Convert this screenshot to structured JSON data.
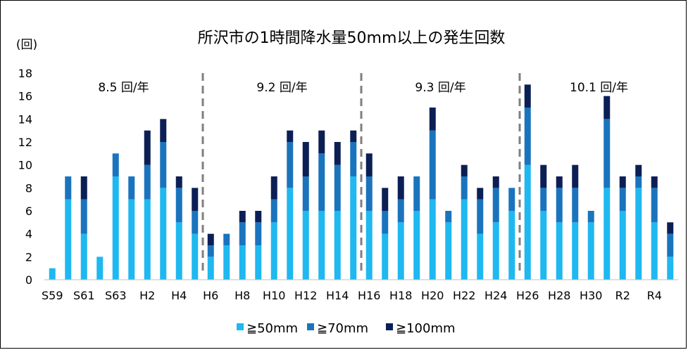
{
  "chart_data": {
    "type": "bar",
    "stacked": true,
    "title": "所沢市の1時間降水量50mm以上の発生回数",
    "ylabel": "(回)",
    "xlabel": "",
    "ylim": [
      0,
      18
    ],
    "yticks": [
      0,
      2,
      4,
      6,
      8,
      10,
      12,
      14,
      16,
      18
    ],
    "grid": false,
    "legend_position": "bottom",
    "categories": [
      "S59",
      "S60",
      "S61",
      "S62",
      "S63",
      "H1",
      "H2",
      "H3",
      "H4",
      "H5",
      "H6",
      "H7",
      "H8",
      "H9",
      "H10",
      "H11",
      "H12",
      "H13",
      "H14",
      "H15",
      "H16",
      "H17",
      "H18",
      "H19",
      "H20",
      "H21",
      "H22",
      "H23",
      "H24",
      "H25",
      "H26",
      "H27",
      "H28",
      "H29",
      "H30",
      "R1",
      "R2",
      "R3",
      "R4",
      "R5"
    ],
    "tick_labels": [
      "S59",
      "",
      "S61",
      "",
      "S63",
      "",
      "H2",
      "",
      "H4",
      "",
      "H6",
      "",
      "H8",
      "",
      "H10",
      "",
      "H12",
      "",
      "H14",
      "",
      "H16",
      "",
      "H18",
      "",
      "H20",
      "",
      "H22",
      "",
      "H24",
      "",
      "H26",
      "",
      "H28",
      "",
      "H30",
      "",
      "R2",
      "",
      "R4",
      ""
    ],
    "series": [
      {
        "name": "≧50mm",
        "color": "#1fb8f0",
        "values": [
          1,
          7,
          4,
          2,
          9,
          7,
          7,
          8,
          5,
          4,
          2,
          3,
          3,
          3,
          5,
          8,
          6,
          6,
          6,
          9,
          6,
          4,
          5,
          6,
          7,
          5,
          7,
          4,
          5,
          6,
          10,
          6,
          5,
          5,
          5,
          8,
          6,
          8,
          5,
          2
        ]
      },
      {
        "name": "≧70mm",
        "color": "#1a74bd",
        "values": [
          0,
          2,
          3,
          0,
          2,
          2,
          3,
          4,
          3,
          2,
          1,
          1,
          2,
          2,
          2,
          4,
          3,
          5,
          4,
          3,
          3,
          2,
          2,
          3,
          6,
          1,
          2,
          3,
          3,
          2,
          5,
          2,
          3,
          3,
          1,
          6,
          2,
          1,
          3,
          2
        ]
      },
      {
        "name": "≧100mm",
        "color": "#0c1f55",
        "values": [
          0,
          0,
          2,
          0,
          0,
          0,
          3,
          2,
          1,
          2,
          1,
          0,
          1,
          1,
          2,
          1,
          3,
          2,
          2,
          1,
          2,
          2,
          2,
          0,
          2,
          0,
          1,
          1,
          1,
          0,
          2,
          2,
          1,
          2,
          0,
          2,
          1,
          1,
          1,
          1
        ]
      }
    ],
    "periods": [
      {
        "label": "8.5 回/年",
        "start_index": 0,
        "end_index": 9
      },
      {
        "label": "9.2 回/年",
        "start_index": 10,
        "end_index": 19
      },
      {
        "label": "9.3 回/年",
        "start_index": 20,
        "end_index": 29
      },
      {
        "label": "10.1 回/年",
        "start_index": 30,
        "end_index": 39
      }
    ],
    "divider_color": "#7f7f7f"
  }
}
